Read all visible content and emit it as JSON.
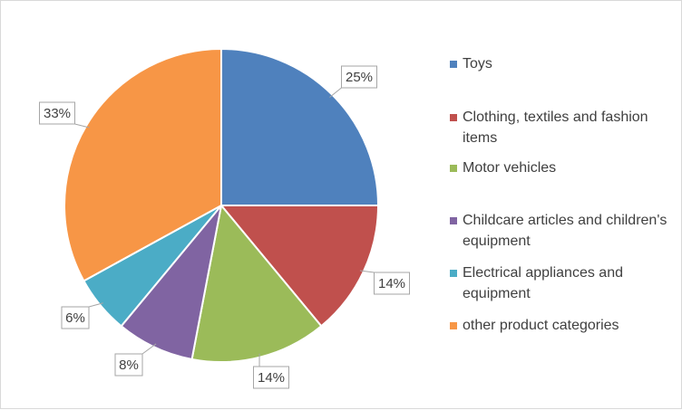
{
  "chart_data": {
    "type": "pie",
    "categories": [
      "Toys",
      "Clothing, textiles and fashion items",
      "Motor vehicles",
      "Childcare articles and children's equipment",
      "Electrical appliances and equipment",
      "other product categories"
    ],
    "values": [
      25,
      14,
      14,
      8,
      6,
      33
    ],
    "data_labels": [
      "25%",
      "14%",
      "14%",
      "8%",
      "6%",
      "33%"
    ],
    "colors": [
      "#4f81bd",
      "#c0504d",
      "#9bbb59",
      "#8064a2",
      "#4bacc6",
      "#f79646"
    ],
    "unit": "%",
    "legend_position": "right",
    "start_angle": "12 o'clock",
    "direction": "clockwise"
  }
}
